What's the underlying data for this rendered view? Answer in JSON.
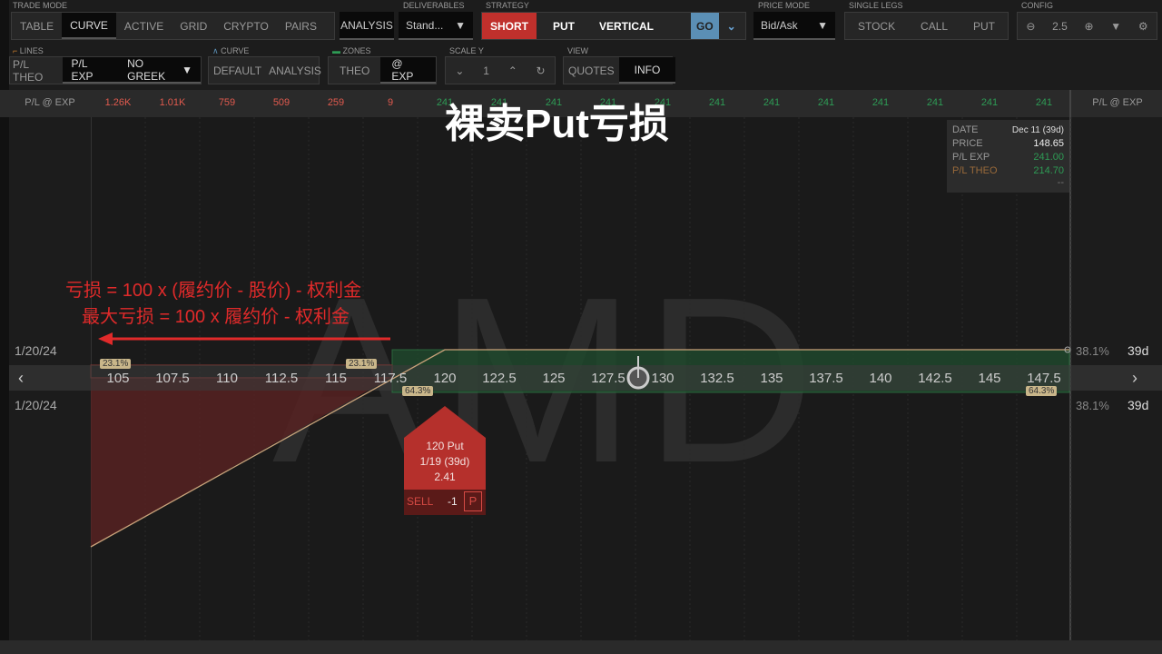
{
  "toolbar": {
    "trade_mode": {
      "label": "TRADE MODE",
      "items": [
        "TABLE",
        "CURVE",
        "ACTIVE",
        "GRID",
        "CRYPTO",
        "PAIRS"
      ],
      "selected": "CURVE"
    },
    "analysis": "ANALYSIS",
    "deliverables": {
      "label": "DELIVERABLES",
      "value": "Stand..."
    },
    "strategy": {
      "label": "STRATEGY",
      "side": "SHORT",
      "type": "PUT",
      "structure": "VERTICAL",
      "go": "GO"
    },
    "price_mode": {
      "label": "PRICE MODE",
      "value": "Bid/Ask"
    },
    "single_legs": {
      "label": "SINGLE LEGS",
      "items": [
        "STOCK",
        "CALL",
        "PUT"
      ]
    },
    "config": {
      "label": "CONFIG",
      "zoom": "2.5"
    },
    "lines": {
      "label": "LINES",
      "items": [
        "P/L THEO",
        "P/L EXP"
      ],
      "selected": "P/L EXP",
      "greek": "NO GREEK"
    },
    "curve": {
      "label": "CURVE",
      "items": [
        "DEFAULT",
        "ANALYSIS"
      ]
    },
    "zones": {
      "label": "ZONES",
      "items": [
        "THEO",
        "@ EXP"
      ],
      "selected": "@ EXP"
    },
    "scale_y": {
      "label": "SCALE Y",
      "value": "1"
    },
    "view": {
      "label": "VIEW",
      "items": [
        "QUOTES",
        "INFO"
      ],
      "selected": "INFO"
    }
  },
  "pl_row": {
    "label": "P/L @ EXP",
    "right_label": "P/L @ EXP",
    "values": [
      "1.26K",
      "1.01K",
      "759",
      "509",
      "259",
      "9",
      "241",
      "241",
      "241",
      "241",
      "241",
      "241",
      "241",
      "241",
      "241",
      "241",
      "241",
      "241"
    ]
  },
  "title_overlay": "裸卖Put亏损",
  "symbol_watermark": "AMD",
  "info_box": {
    "date_label": "DATE",
    "date": "Dec 11 (39d)",
    "price_label": "PRICE",
    "price": "148.65",
    "plexp_label": "P/L EXP",
    "plexp": "241.00",
    "pltheo_label": "P/L THEO",
    "pltheo": "214.70",
    "extra": "--"
  },
  "annotation": {
    "line1": "亏损 = 100 x (履约价 - 股价) - 权利金",
    "line2": "最大亏损 = 100 x 履约价 - 权利金"
  },
  "dates": {
    "top": "1/20/24",
    "bottom": "1/20/24"
  },
  "right": {
    "top_pct": "38.1%",
    "top_days": "39d",
    "bottom_pct": "38.1%",
    "bottom_days": "39d"
  },
  "strikes": [
    "105",
    "107.5",
    "110",
    "112.5",
    "115",
    "117.5",
    "120",
    "122.5",
    "125",
    "127.5",
    "130",
    "132.5",
    "135",
    "137.5",
    "140",
    "142.5",
    "145",
    "147.5"
  ],
  "prob_tags": {
    "red_left": "23.1%",
    "red_right": "23.1%",
    "green_left": "64.3%",
    "green_right": "64.3%"
  },
  "order": {
    "title": "120 Put",
    "expiry": "1/19 (39d)",
    "price": "2.41",
    "action": "SELL",
    "qty": "-1",
    "type": "P"
  },
  "colors": {
    "red": "#c0302c",
    "green": "#2e9b55",
    "loss_text": "#e05a4e"
  }
}
